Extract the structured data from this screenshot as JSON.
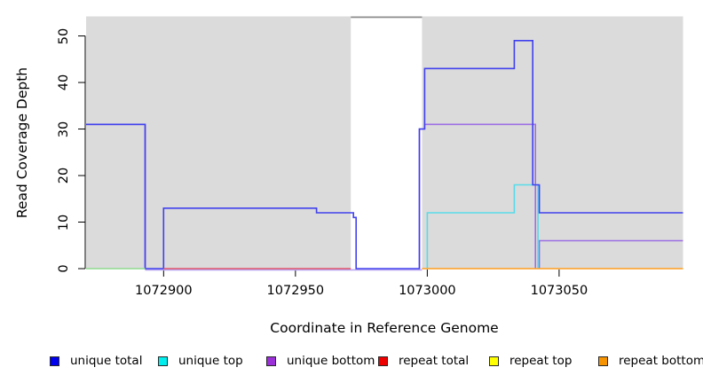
{
  "figure": {
    "background": "#ffffff",
    "plot_background": "#dbdbdb",
    "masked_band_fill": "#ffffff",
    "masked_band_top_edge": "#8f8f8f",
    "axis_color": "#000000"
  },
  "chart_data": {
    "type": "line",
    "subtype": "step",
    "title": "",
    "xlabel": "Coordinate in Reference Genome",
    "ylabel": "Read Coverage Depth",
    "x_ticks": [
      1072900,
      1072950,
      1073000,
      1073050
    ],
    "y_ticks": [
      0,
      10,
      20,
      30,
      40,
      50
    ],
    "x_range": [
      1072870.6,
      1073097
    ],
    "y_range": [
      0,
      54.2
    ],
    "grid": false,
    "legend_position": "bottom",
    "masked_region": {
      "x1": 1072971,
      "x2": 1072998,
      "note": "white band over plot area"
    },
    "lines": [
      {
        "name": "unique-bottom-zero-underline",
        "series": "unique bottom",
        "color": "#b7a6f0",
        "dy": 1.4,
        "paths": [
          [
            [
              1072893,
              0
            ],
            [
              1072998,
              0
            ]
          ]
        ]
      },
      {
        "name": "unique-bottom",
        "series": "unique bottom",
        "color": "#9c6fe4",
        "dy": 0,
        "paths": [
          [
            [
              1072870.6,
              31
            ],
            [
              1072893,
              31
            ],
            [
              1072893,
              0
            ]
          ],
          [
            [
              1072997,
              0
            ],
            [
              1072997,
              30
            ],
            [
              1072999,
              30
            ],
            [
              1072999,
              31
            ],
            [
              1073041,
              31
            ],
            [
              1073041,
              0
            ]
          ],
          [
            [
              1073042.5,
              0
            ],
            [
              1073042.5,
              6
            ],
            [
              1073097,
              6
            ]
          ]
        ]
      },
      {
        "name": "unique-top",
        "series": "unique top",
        "color": "#57dbea",
        "dy": 0,
        "paths": [
          [
            [
              1073000,
              0
            ],
            [
              1073000,
              12
            ],
            [
              1073033,
              12
            ],
            [
              1073033,
              18
            ],
            [
              1073042,
              18
            ],
            [
              1073042,
              0
            ]
          ]
        ]
      },
      {
        "name": "unique-total",
        "series": "unique total",
        "color": "#4040ee",
        "dy": 0,
        "paths": [
          [
            [
              1072870.6,
              31
            ],
            [
              1072893,
              31
            ],
            [
              1072893,
              0
            ],
            [
              1072900,
              0
            ],
            [
              1072900,
              13
            ],
            [
              1072958,
              13
            ],
            [
              1072958,
              12
            ],
            [
              1072972,
              12
            ],
            [
              1072972,
              11
            ],
            [
              1072973,
              11
            ],
            [
              1072973,
              0
            ],
            [
              1072997,
              0
            ],
            [
              1072997,
              30
            ],
            [
              1072999,
              30
            ],
            [
              1072999,
              43
            ],
            [
              1073033,
              43
            ],
            [
              1073033,
              49
            ],
            [
              1073040,
              49
            ],
            [
              1073040,
              18
            ],
            [
              1073042.5,
              18
            ],
            [
              1073042.5,
              12
            ],
            [
              1073097,
              12
            ]
          ]
        ]
      },
      {
        "name": "top-strand-zero-overlap",
        "series": "unique top + repeat top (overlapping at 0)",
        "color": "#8fd98f",
        "dy": 0,
        "paths": [
          [
            [
              1072870.6,
              0
            ],
            [
              1072893,
              0
            ]
          ]
        ]
      },
      {
        "name": "repeat-total",
        "series": "repeat total",
        "color": "#e0556b",
        "dy": 0,
        "paths": [
          [
            [
              1072900,
              0
            ],
            [
              1072971,
              0
            ]
          ]
        ]
      },
      {
        "name": "repeat-bottom",
        "series": "repeat bottom",
        "color": "#ff9d1e",
        "dy": 0,
        "paths": [
          [
            [
              1072998,
              0
            ],
            [
              1073097,
              0
            ]
          ]
        ]
      }
    ],
    "legend": [
      {
        "label": "unique total",
        "swatch_color": "#0000ee"
      },
      {
        "label": "unique top",
        "swatch_color": "#00eeee"
      },
      {
        "label": "unique bottom",
        "swatch_color": "#9b30d9"
      },
      {
        "label": "repeat total",
        "swatch_color": "#ee0000"
      },
      {
        "label": "repeat top",
        "swatch_color": "#ffff00"
      },
      {
        "label": "repeat bottom",
        "swatch_color": "#f59300"
      }
    ]
  },
  "labels": {
    "x_axis_title": "Coordinate in Reference Genome",
    "y_axis_title": "Read Coverage Depth"
  }
}
